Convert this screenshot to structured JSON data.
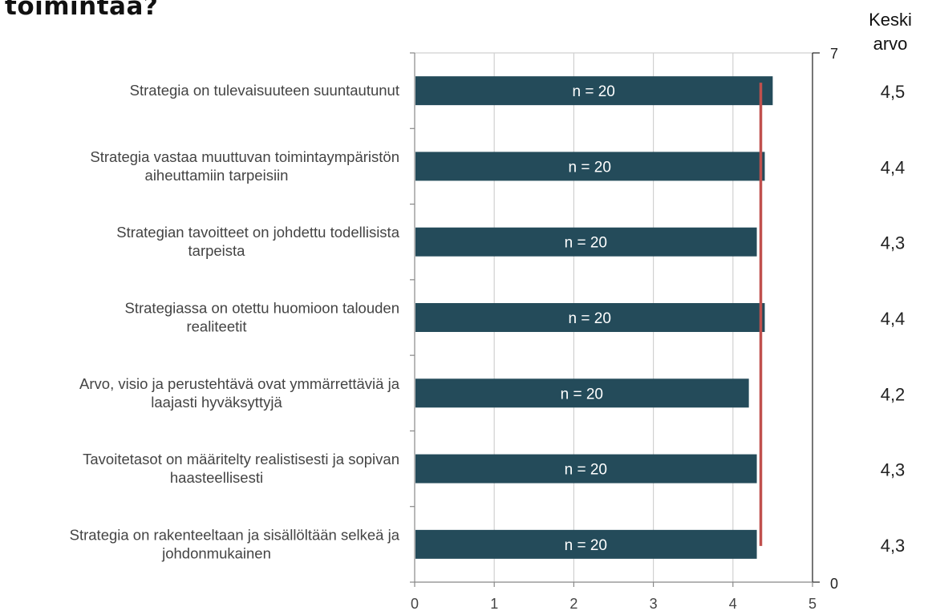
{
  "title": "toimintaa?",
  "mean_header": {
    "line1": "Keski",
    "line2": "arvo"
  },
  "colors": {
    "bar": "#244b5a",
    "reference_line": "#c0504d",
    "grid": "#d0d0d0",
    "axis": "#888888"
  },
  "chart_data": {
    "type": "bar",
    "orientation": "horizontal",
    "categories": [
      [
        "Strategia on tulevaisuuteen suuntautunut"
      ],
      [
        "Strategia vastaa muuttuvan toimintaympäristön",
        "aiheuttamiin tarpeisiin"
      ],
      [
        "Strategian tavoitteet on johdettu todellisista",
        "tarpeista"
      ],
      [
        "Strategiassa on otettu huomioon talouden",
        "realiteetit"
      ],
      [
        "Arvo, visio ja perustehtävä ovat ymmärrettäviä ja",
        "laajasti hyväksyttyjä"
      ],
      [
        "Tavoitetasot on määritelty realistisesti ja sopivan",
        "haasteellisesti"
      ],
      [
        "Strategia on rakenteeltaan ja sisällöltään selkeä ja",
        "johdonmukainen"
      ]
    ],
    "values": [
      4.5,
      4.4,
      4.3,
      4.4,
      4.2,
      4.3,
      4.3
    ],
    "bar_labels": [
      "n = 20",
      "n = 20",
      "n = 20",
      "n = 20",
      "n = 20",
      "n = 20",
      "n = 20"
    ],
    "mean_labels": [
      "4,5",
      "4,4",
      "4,3",
      "4,4",
      "4,2",
      "4,3",
      "4,3"
    ],
    "xlim": [
      0,
      5
    ],
    "xticks": [
      "0",
      "1",
      "2",
      "3",
      "4",
      "5"
    ],
    "secondary_axis": {
      "top_label": "7",
      "bottom_label": "0"
    },
    "reference_line_value": 4.35,
    "grid": true
  }
}
